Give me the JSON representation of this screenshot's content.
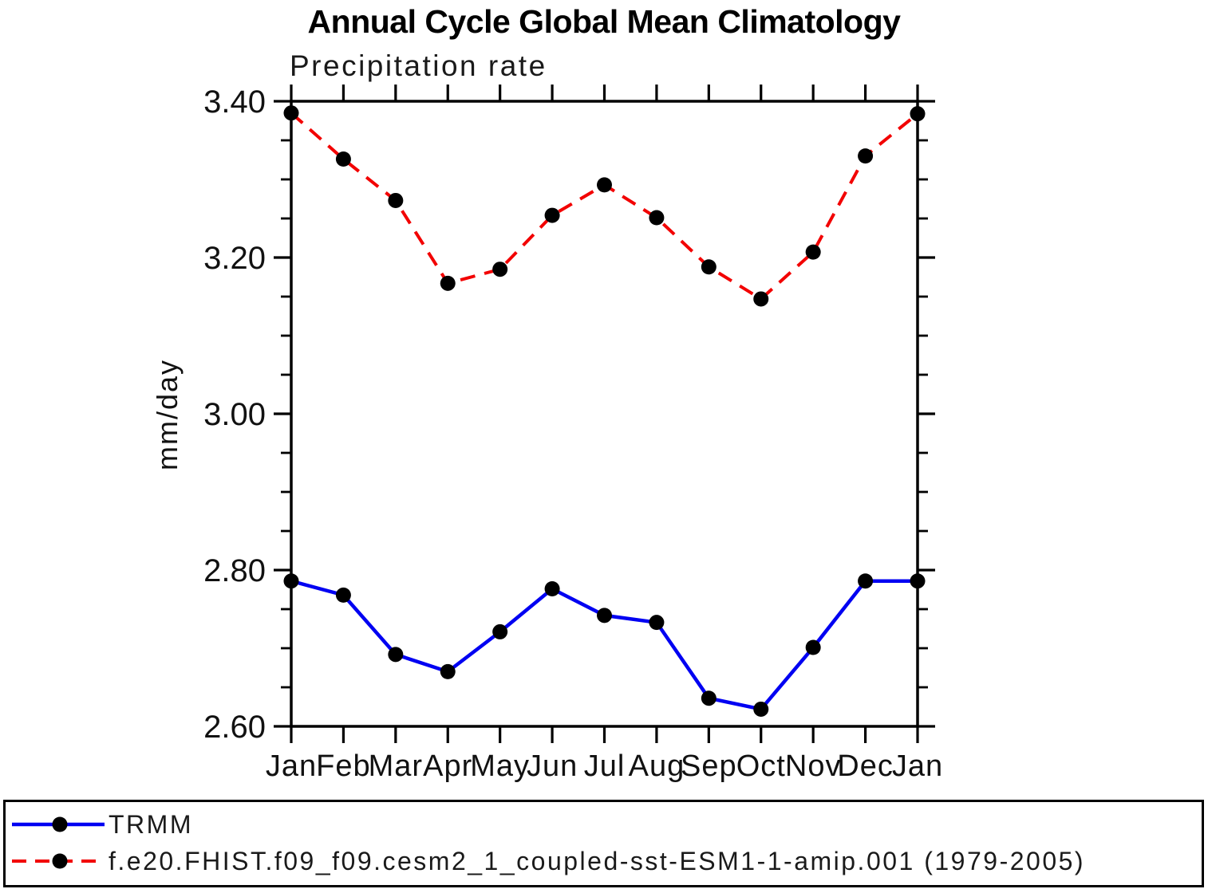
{
  "chart_data": {
    "type": "line",
    "title": "Annual Cycle Global Mean Climatology",
    "subtitle": "Precipitation rate",
    "xlabel": "",
    "ylabel": "mm/day",
    "categories": [
      "Jan",
      "Feb",
      "Mar",
      "Apr",
      "May",
      "Jun",
      "Jul",
      "Aug",
      "Sep",
      "Oct",
      "Nov",
      "Dec",
      "Jan"
    ],
    "ylim": [
      2.6,
      3.4
    ],
    "ytick_major": [
      2.6,
      2.8,
      3.0,
      3.2,
      3.4
    ],
    "ytick_major_labels": [
      "2.60",
      "2.80",
      "3.00",
      "3.20",
      "3.40"
    ],
    "ytick_minor_step": 0.05,
    "grid": false,
    "legend_position": "bottom-outside-box",
    "axis_color": "#000000",
    "marker": "filled-circle",
    "marker_color": "#000000",
    "series": [
      {
        "name": "TRMM",
        "color": "#0000f2",
        "line_style": "solid",
        "values": [
          2.786,
          2.768,
          2.692,
          2.67,
          2.721,
          2.776,
          2.742,
          2.733,
          2.636,
          2.622,
          2.701,
          2.786,
          2.786
        ]
      },
      {
        "name": "f.e20.FHIST.f09_f09.cesm2_1_coupled-sst-ESM1-1-amip.001 (1979-2005)",
        "color": "#f20000",
        "line_style": "dashed",
        "values": [
          3.385,
          3.326,
          3.273,
          3.167,
          3.185,
          3.254,
          3.293,
          3.251,
          3.188,
          3.147,
          3.207,
          3.33,
          3.384
        ]
      }
    ]
  }
}
